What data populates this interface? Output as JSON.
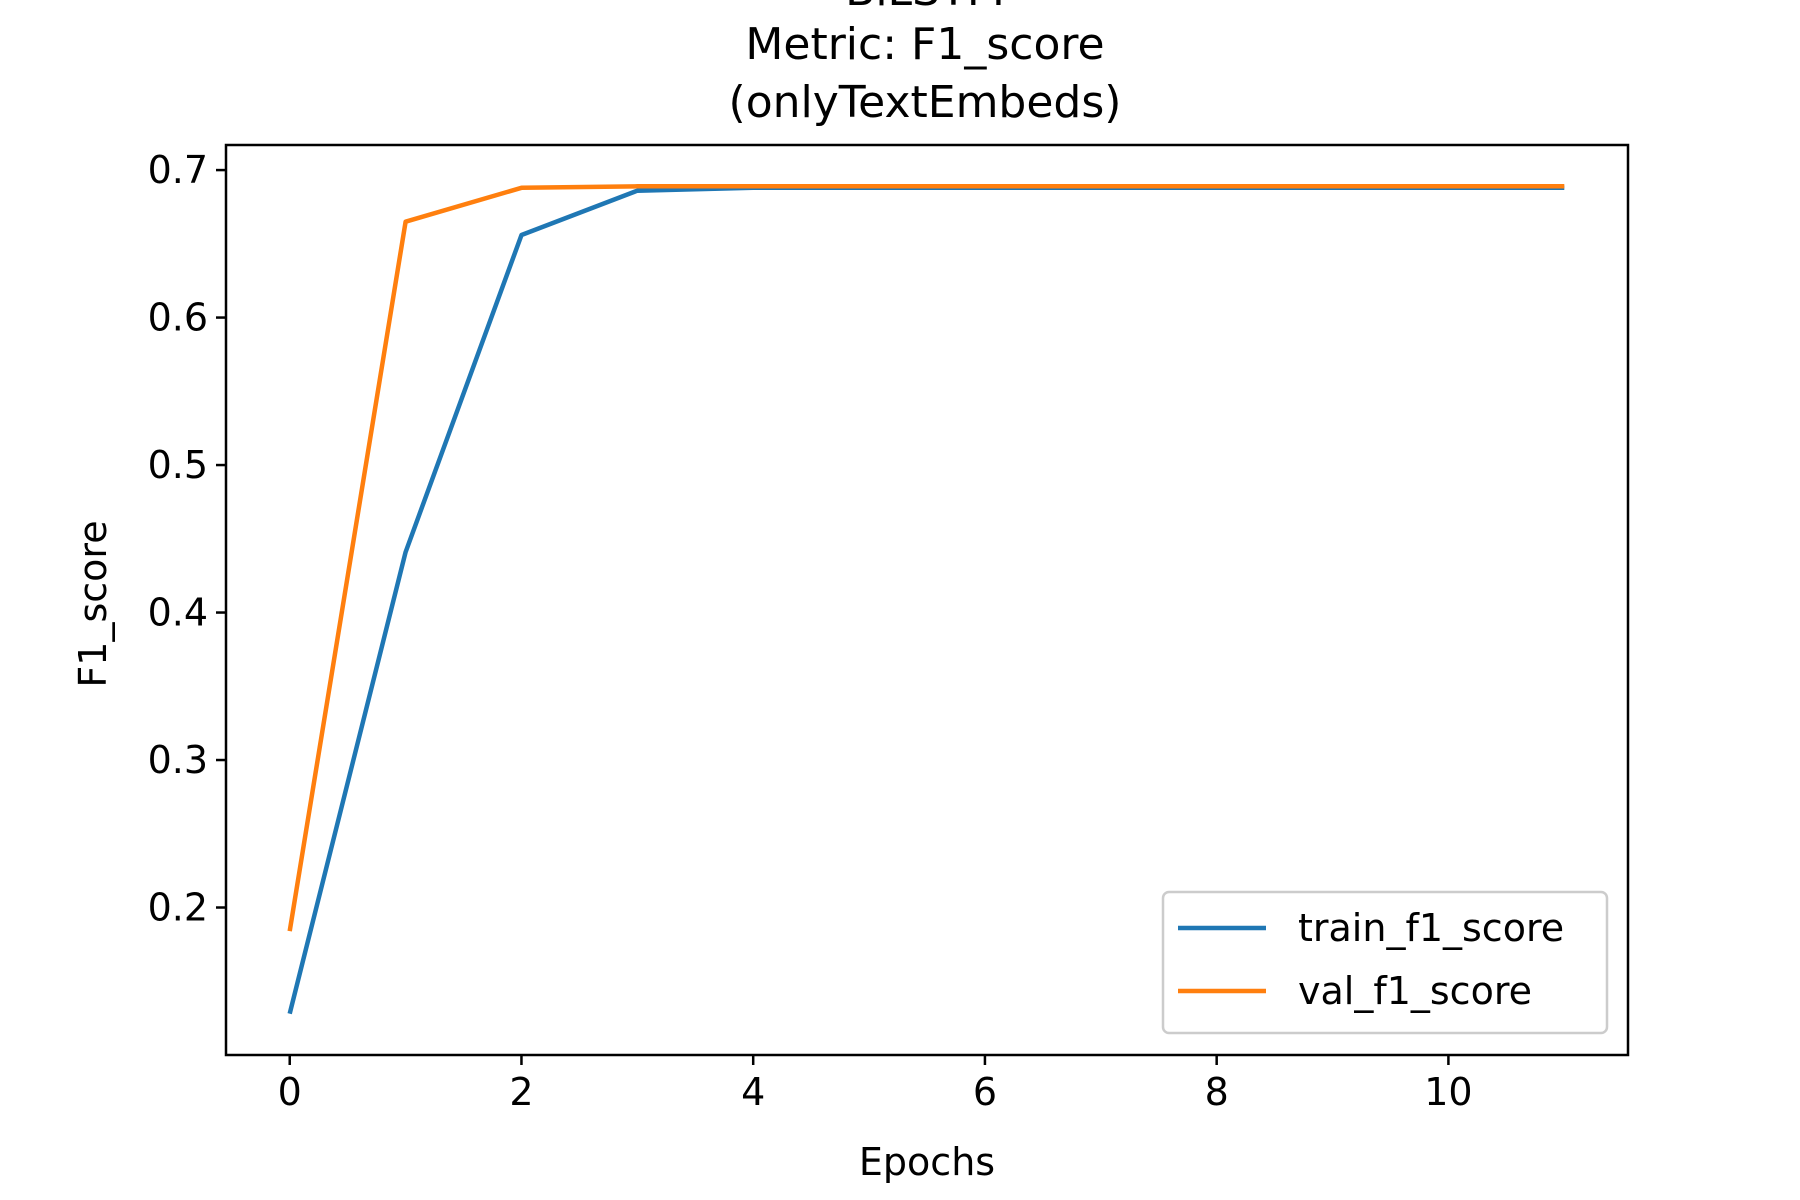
{
  "chart_data": {
    "type": "line",
    "title_lines": [
      "BiLSTM",
      "Metric: F1_score",
      "(onlyTextEmbeds)"
    ],
    "xlabel": "Epochs",
    "ylabel": "F1_score",
    "xlim": [
      -0.55,
      11.55
    ],
    "ylim": [
      0.1,
      0.717
    ],
    "xticks": [
      0,
      2,
      4,
      6,
      8,
      10
    ],
    "yticks": [
      0.2,
      0.3,
      0.4,
      0.5,
      0.6,
      0.7
    ],
    "grid": false,
    "legend_position": "lower-right",
    "x": [
      0,
      1,
      2,
      3,
      4,
      5,
      6,
      7,
      8,
      9,
      10,
      11
    ],
    "series": [
      {
        "name": "train_f1_score",
        "color": "#1f77b4",
        "values": [
          0.128,
          0.441,
          0.656,
          0.686,
          0.688,
          0.688,
          0.688,
          0.688,
          0.688,
          0.688,
          0.688,
          0.688
        ]
      },
      {
        "name": "val_f1_score",
        "color": "#ff7f0e",
        "values": [
          0.184,
          0.665,
          0.688,
          0.689,
          0.689,
          0.689,
          0.689,
          0.689,
          0.689,
          0.689,
          0.689,
          0.689
        ]
      }
    ]
  }
}
